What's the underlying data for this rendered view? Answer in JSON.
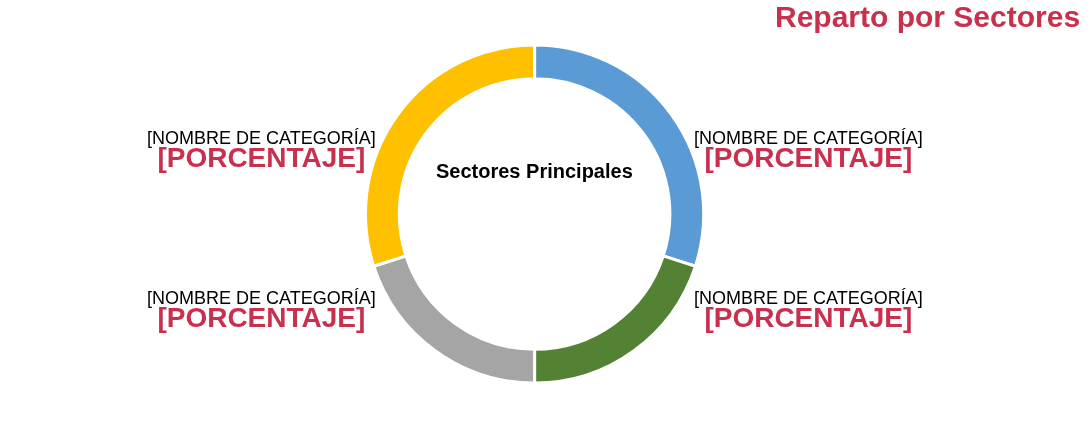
{
  "chart_data": {
    "type": "donut",
    "title": "Reparto por Sectores",
    "categories": [
      "[NOMBRE DE CATEGORÍA]",
      "[NOMBRE DE CATEGORÍA]",
      "[NOMBRE DE CATEGORÍA]",
      "[NOMBRE DE CATEGORÍA]"
    ],
    "values": [
      30,
      20,
      20,
      30
    ],
    "colors": [
      "#5b9bd5",
      "#548235",
      "#a5a5a5",
      "#ffc000"
    ],
    "value_labels": [
      "[PORCENTAJE]",
      "[PORCENTAJE]",
      "[PORCENTAJE]",
      "[PORCENTAJE]"
    ],
    "annotations": [
      "Sectores Principales"
    ]
  }
}
